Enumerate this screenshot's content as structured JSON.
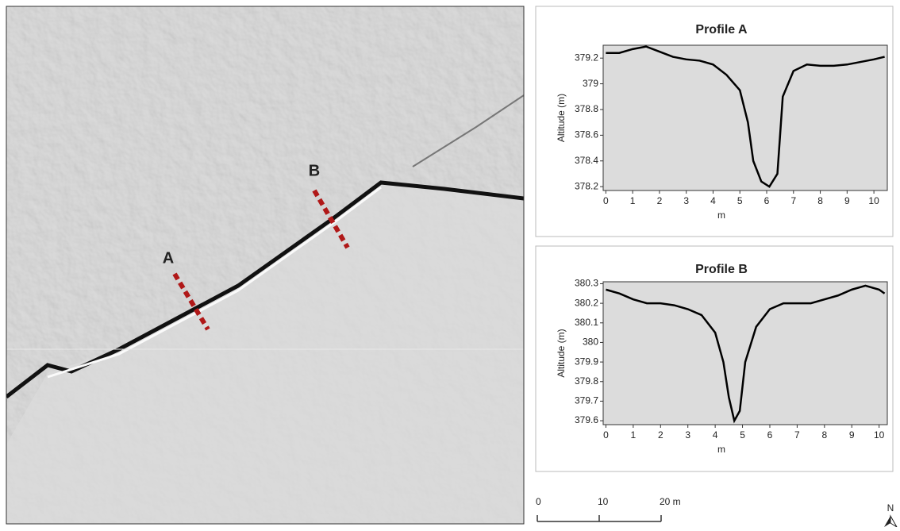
{
  "chart_data": [
    {
      "type": "line",
      "title": "Profile A",
      "xlabel": "m",
      "ylabel": "Altitude (m)",
      "color": "#000000",
      "x": [
        0,
        0.5,
        1,
        1.5,
        2,
        2.5,
        3,
        3.5,
        4,
        4.5,
        5,
        5.3,
        5.5,
        5.8,
        6.1,
        6.4,
        6.6,
        7,
        7.5,
        8,
        8.5,
        9,
        9.5,
        10,
        10.4
      ],
      "values": [
        379.24,
        379.24,
        379.27,
        379.29,
        379.25,
        379.21,
        379.19,
        379.18,
        379.15,
        379.07,
        378.95,
        378.7,
        378.4,
        378.24,
        378.2,
        378.3,
        378.9,
        379.1,
        379.15,
        379.14,
        379.14,
        379.15,
        379.17,
        379.19,
        379.21
      ],
      "xlim": [
        -0.1,
        10.5
      ],
      "xticks": [
        0,
        1,
        2,
        3,
        4,
        5,
        6,
        7,
        8,
        9,
        10
      ],
      "ylim": [
        378.17,
        379.3
      ],
      "yticks": [
        378.2,
        378.4,
        378.6,
        378.8,
        379,
        379.2
      ]
    },
    {
      "type": "line",
      "title": "Profile B",
      "xlabel": "m",
      "ylabel": "Altitude (m)",
      "color": "#000000",
      "x": [
        0,
        0.5,
        1,
        1.5,
        2,
        2.5,
        3,
        3.5,
        4,
        4.3,
        4.5,
        4.7,
        4.9,
        5.1,
        5.5,
        6,
        6.5,
        7,
        7.5,
        8,
        8.5,
        9,
        9.5,
        10,
        10.2
      ],
      "values": [
        380.27,
        380.25,
        380.22,
        380.2,
        380.2,
        380.19,
        380.17,
        380.14,
        380.05,
        379.9,
        379.72,
        379.6,
        379.65,
        379.9,
        380.08,
        380.17,
        380.2,
        380.2,
        380.2,
        380.22,
        380.24,
        380.27,
        380.29,
        380.27,
        380.25
      ],
      "xlim": [
        -0.1,
        10.3
      ],
      "xticks": [
        0,
        1,
        2,
        3,
        4,
        5,
        6,
        7,
        8,
        9,
        10
      ],
      "ylim": [
        379.58,
        380.31
      ],
      "yticks": [
        379.6,
        379.7,
        379.8,
        379.9,
        380,
        380.1,
        380.2,
        380.3
      ]
    }
  ],
  "map": {
    "labels": [
      "A",
      "B"
    ]
  },
  "scale_bar": {
    "ticks": [
      0,
      10,
      {
        "value": 20,
        "label": "20 m"
      }
    ],
    "max": 20
  },
  "north": "N"
}
